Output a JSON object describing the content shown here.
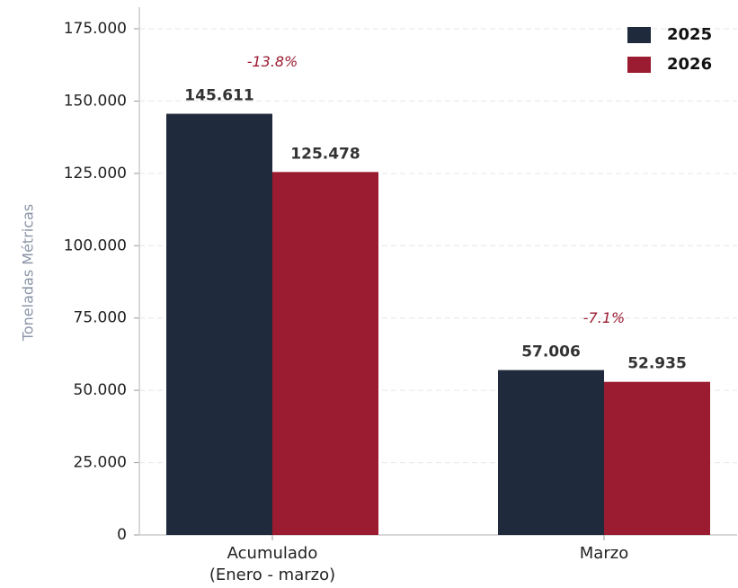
{
  "chart_data": {
    "type": "bar",
    "ylabel": "Toneladas Métricas",
    "categories": [
      "Acumulado\n(Enero - marzo)",
      "Marzo"
    ],
    "series": [
      {
        "name": "2025",
        "color": "#1f2a3c",
        "values": [
          145611,
          57006
        ],
        "value_labels": [
          "145.611",
          "57.006"
        ]
      },
      {
        "name": "2026",
        "color": "#9b1c31",
        "values": [
          125478,
          52935
        ],
        "value_labels": [
          "125.478",
          "52.935"
        ]
      }
    ],
    "annotations": [
      {
        "text": "-13.8%",
        "category": 0
      },
      {
        "text": "-7.1%",
        "category": 1
      }
    ],
    "ylim": [
      0,
      175000
    ],
    "yticks": [
      0,
      {
        "value": 25000,
        "label": "25.000"
      },
      {
        "value": 50000,
        "label": "50.000"
      },
      {
        "value": 75000,
        "label": "75.000"
      },
      {
        "value": 100000,
        "label": "100.000"
      },
      {
        "value": 125000,
        "label": "125.000"
      },
      {
        "value": 150000,
        "label": "150.000"
      },
      {
        "value": 175000,
        "label": "175.000"
      }
    ],
    "grid": true,
    "legend": "upper right"
  }
}
